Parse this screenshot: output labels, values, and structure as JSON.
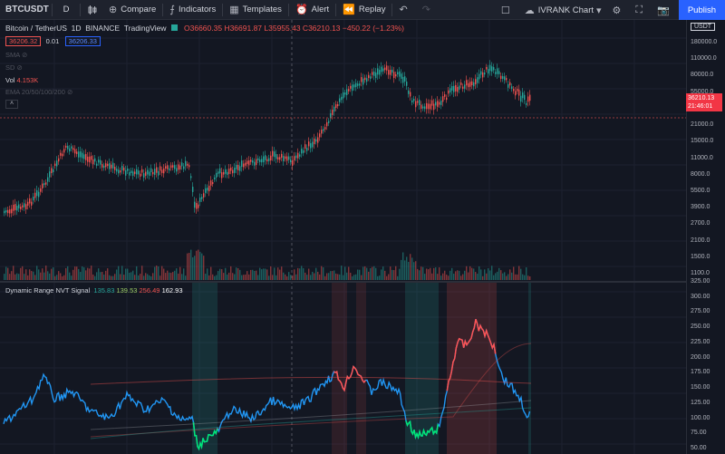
{
  "toolbar": {
    "symbol": "BTCUSDT",
    "interval": "D",
    "compare": "Compare",
    "indicators": "Indicators",
    "templates": "Templates",
    "alert": "Alert",
    "replay": "Replay",
    "layout_name": "IVRANK Chart",
    "publish": "Publish"
  },
  "legend": {
    "title": "Bitcoin / TetherUS",
    "interval": "1D",
    "exchange": "BINANCE",
    "source": "TradingView",
    "ohlc": "O36660.35 H36691.87 L35955.43 C36210.13 −450.22 (−1.23%)",
    "bid": "36206.32",
    "spread": "0.01",
    "ask": "36206.33",
    "sma": "SMA",
    "sd": "SD",
    "vol_label": "Vol",
    "vol_value": "4.153K",
    "ema": "EMA 20/50/100/200"
  },
  "indicator": {
    "name": "Dynamic Range NVT Signal",
    "v1": "135.83",
    "v2": "139.53",
    "v3": "256.49",
    "v4": "162.93"
  },
  "axis": {
    "currency": "USDT",
    "price_ticks": [
      "180000.0",
      "110000.0",
      "80000.0",
      "55000.0",
      "37000.0",
      "21000.0",
      "15000.0",
      "11000.0",
      "8000.0",
      "5500.0",
      "3900.0",
      "2700.0",
      "2100.0",
      "1500.0",
      "1100.0"
    ],
    "nvt_ticks": [
      "325.00",
      "300.00",
      "275.00",
      "250.00",
      "225.00",
      "200.00",
      "175.00",
      "150.00",
      "125.00",
      "100.00",
      "75.00",
      "50.00"
    ],
    "last_price": "36210.13",
    "countdown": "21:46:01"
  },
  "colors": {
    "up": "#26a69a",
    "down": "#ef5350",
    "nvt_blue": "#2196f3",
    "nvt_green": "#00e676",
    "nvt_red": "#ff5252",
    "accent": "#2962ff"
  }
}
